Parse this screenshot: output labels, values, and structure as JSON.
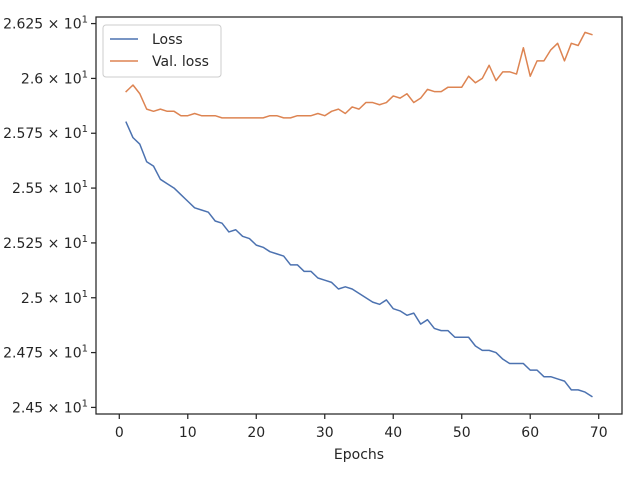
{
  "chart_data": {
    "type": "line",
    "title": "",
    "xlabel": "Epochs",
    "ylabel": "",
    "xlim": [
      -3.4,
      73.4
    ],
    "ylim": [
      24.47,
      26.28
    ],
    "grid": false,
    "legend_position": "top-left",
    "x_ticks": [
      0,
      10,
      20,
      30,
      40,
      50,
      60,
      70
    ],
    "x_tick_labels": [
      "0",
      "10",
      "20",
      "30",
      "40",
      "50",
      "60",
      "70"
    ],
    "y_ticks": [
      24.5,
      24.75,
      25.0,
      25.25,
      25.5,
      25.75,
      26.0,
      26.25
    ],
    "y_tick_labels": [
      "2.45",
      "2.475",
      "2.5",
      "2.525",
      "2.55",
      "2.575",
      "2.6",
      "2.625"
    ],
    "y_tick_suffix": "× 10",
    "y_tick_exponent": "1",
    "x": [
      1,
      2,
      3,
      4,
      5,
      6,
      7,
      8,
      9,
      10,
      11,
      12,
      13,
      14,
      15,
      16,
      17,
      18,
      19,
      20,
      21,
      22,
      23,
      24,
      25,
      26,
      27,
      28,
      29,
      30,
      31,
      32,
      33,
      34,
      35,
      36,
      37,
      38,
      39,
      40,
      41,
      42,
      43,
      44,
      45,
      46,
      47,
      48,
      49,
      50,
      51,
      52,
      53,
      54,
      55,
      56,
      57,
      58,
      59,
      60,
      61,
      62,
      63,
      64,
      65,
      66,
      67,
      68,
      69
    ],
    "series": [
      {
        "name": "Loss",
        "color": "#4c72b0",
        "values": [
          25.8,
          25.73,
          25.7,
          25.62,
          25.6,
          25.54,
          25.52,
          25.5,
          25.47,
          25.44,
          25.41,
          25.4,
          25.39,
          25.35,
          25.34,
          25.3,
          25.31,
          25.28,
          25.27,
          25.24,
          25.23,
          25.21,
          25.2,
          25.19,
          25.15,
          25.15,
          25.12,
          25.12,
          25.09,
          25.08,
          25.07,
          25.04,
          25.05,
          25.04,
          25.02,
          25.0,
          24.98,
          24.97,
          24.99,
          24.95,
          24.94,
          24.92,
          24.93,
          24.88,
          24.9,
          24.86,
          24.85,
          24.85,
          24.82,
          24.82,
          24.82,
          24.78,
          24.76,
          24.76,
          24.75,
          24.72,
          24.7,
          24.7,
          24.7,
          24.67,
          24.67,
          24.64,
          24.64,
          24.63,
          24.62,
          24.58,
          24.58,
          24.57,
          24.55
        ]
      },
      {
        "name": "Val. loss",
        "color": "#dd8452",
        "values": [
          25.94,
          25.97,
          25.93,
          25.86,
          25.85,
          25.86,
          25.85,
          25.85,
          25.83,
          25.83,
          25.84,
          25.83,
          25.83,
          25.83,
          25.82,
          25.82,
          25.82,
          25.82,
          25.82,
          25.82,
          25.82,
          25.83,
          25.83,
          25.82,
          25.82,
          25.83,
          25.83,
          25.83,
          25.84,
          25.83,
          25.85,
          25.86,
          25.84,
          25.87,
          25.86,
          25.89,
          25.89,
          25.88,
          25.89,
          25.92,
          25.91,
          25.93,
          25.89,
          25.91,
          25.95,
          25.94,
          25.94,
          25.96,
          25.96,
          25.96,
          26.01,
          25.98,
          26.0,
          26.06,
          25.99,
          26.03,
          26.03,
          26.02,
          26.14,
          26.01,
          26.08,
          26.08,
          26.13,
          26.16,
          26.08,
          26.16,
          26.15,
          26.21,
          26.2
        ]
      }
    ]
  }
}
